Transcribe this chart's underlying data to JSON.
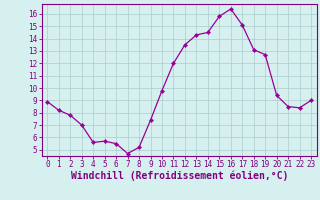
{
  "x": [
    0,
    1,
    2,
    3,
    4,
    5,
    6,
    7,
    8,
    9,
    10,
    11,
    12,
    13,
    14,
    15,
    16,
    17,
    18,
    19,
    20,
    21,
    22,
    23
  ],
  "y": [
    8.9,
    8.2,
    7.8,
    7.0,
    5.6,
    5.7,
    5.5,
    4.7,
    5.2,
    7.4,
    9.8,
    12.0,
    13.5,
    14.3,
    14.5,
    15.8,
    16.4,
    15.1,
    13.1,
    12.7,
    9.4,
    8.5,
    8.4,
    9.0
  ],
  "line_color": "#990099",
  "marker": "D",
  "marker_size": 2.2,
  "bg_color": "#d6f0f0",
  "grid_color": "#aacccc",
  "xlabel": "Windchill (Refroidissement éolien,°C)",
  "ylabel": "",
  "ylim": [
    4.5,
    16.8
  ],
  "xlim": [
    -0.5,
    23.5
  ],
  "yticks": [
    5,
    6,
    7,
    8,
    9,
    10,
    11,
    12,
    13,
    14,
    15,
    16
  ],
  "xticks": [
    0,
    1,
    2,
    3,
    4,
    5,
    6,
    7,
    8,
    9,
    10,
    11,
    12,
    13,
    14,
    15,
    16,
    17,
    18,
    19,
    20,
    21,
    22,
    23
  ],
  "tick_fontsize": 5.5,
  "xlabel_fontsize": 7.0,
  "spine_color": "#800080",
  "tick_color": "#800080",
  "label_color": "#800080"
}
